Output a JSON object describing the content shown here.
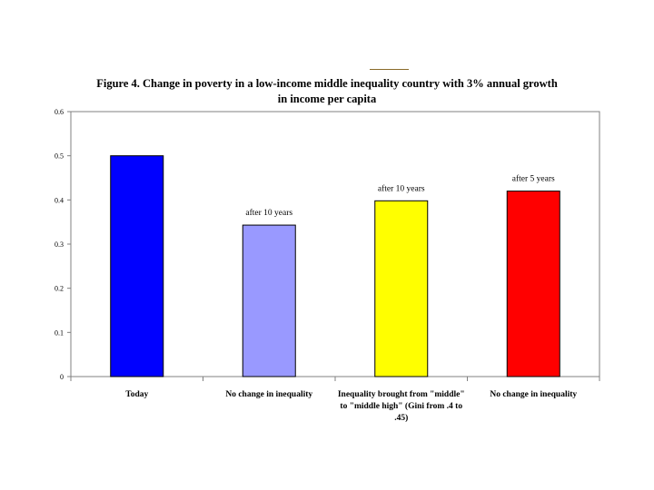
{
  "chart_data": {
    "type": "bar",
    "title": "Figure 4. Change in poverty in a low-income middle inequality country with 3% annual growth in income per capita",
    "categories": [
      [
        "Today"
      ],
      [
        "No change in inequality"
      ],
      [
        "Inequality brought from  \"middle\"",
        "to \"middle high\" (Gini from .4 to",
        ".45)"
      ],
      [
        "No change in inequality"
      ]
    ],
    "values": [
      0.5,
      0.343,
      0.398,
      0.42
    ],
    "bar_colors": [
      "#0000ff",
      "#9999ff",
      "#ffff00",
      "#ff0000"
    ],
    "annotations": [
      "",
      "after 10 years",
      "after 10 years",
      "after 5 years"
    ],
    "xlabel": "",
    "ylabel": "",
    "ylim": [
      0,
      0.6
    ],
    "yticks": [
      "0",
      "0.1",
      "0.2",
      "0.3",
      "0.4",
      "0.5",
      "0.6"
    ],
    "grid": false,
    "legend": "none"
  }
}
